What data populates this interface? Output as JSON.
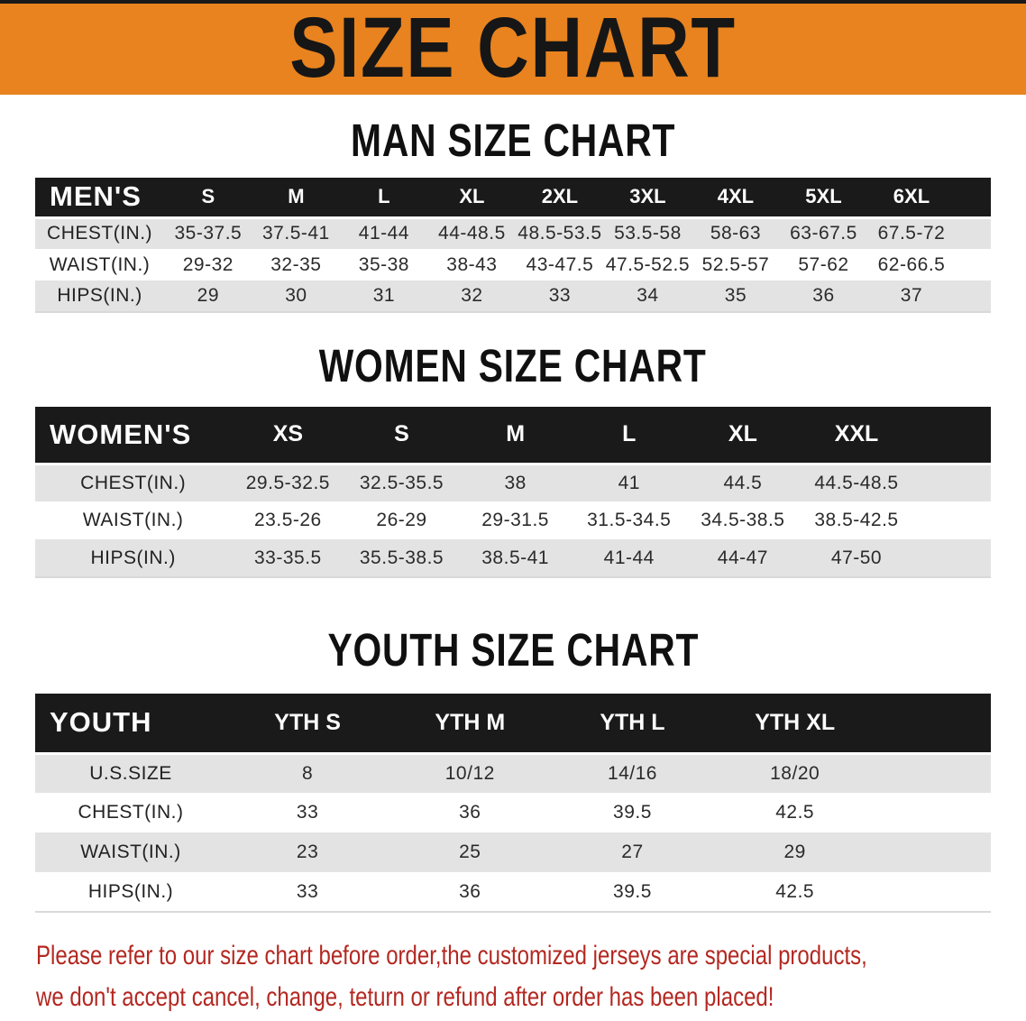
{
  "banner": {
    "title": "SIZE CHART"
  },
  "colors": {
    "banner_orange": "#E8831F",
    "header_black": "#1A1A1A",
    "row_gray": "#E3E3E4",
    "disclaimer_red": "#B32821"
  },
  "sections": [
    {
      "heading": "MAN SIZE CHART",
      "table": {
        "corner_label": "MEN'S",
        "columns": [
          "S",
          "M",
          "L",
          "XL",
          "2XL",
          "3XL",
          "4XL",
          "5XL",
          "6XL"
        ],
        "rows": [
          {
            "label": "CHEST(IN.)",
            "values": [
              "35-37.5",
              "37.5-41",
              "41-44",
              "44-48.5",
              "48.5-53.5",
              "53.5-58",
              "58-63",
              "63-67.5",
              "67.5-72"
            ]
          },
          {
            "label": "WAIST(IN.)",
            "values": [
              "29-32",
              "32-35",
              "35-38",
              "38-43",
              "43-47.5",
              "47.5-52.5",
              "52.5-57",
              "57-62",
              "62-66.5"
            ]
          },
          {
            "label": "HIPS(IN.)",
            "values": [
              "29",
              "30",
              "31",
              "32",
              "33",
              "34",
              "35",
              "36",
              "37"
            ]
          }
        ]
      }
    },
    {
      "heading": "WOMEN SIZE CHART",
      "table": {
        "corner_label": "WOMEN'S",
        "columns": [
          "XS",
          "S",
          "M",
          "L",
          "XL",
          "XXL"
        ],
        "rows": [
          {
            "label": "CHEST(IN.)",
            "values": [
              "29.5-32.5",
              "32.5-35.5",
              "38",
              "41",
              "44.5",
              "44.5-48.5"
            ]
          },
          {
            "label": "WAIST(IN.)",
            "values": [
              "23.5-26",
              "26-29",
              "29-31.5",
              "31.5-34.5",
              "34.5-38.5",
              "38.5-42.5"
            ]
          },
          {
            "label": "HIPS(IN.)",
            "values": [
              "33-35.5",
              "35.5-38.5",
              "38.5-41",
              "41-44",
              "44-47",
              "47-50"
            ]
          }
        ]
      }
    },
    {
      "heading": "YOUTH SIZE CHART",
      "table": {
        "corner_label": "YOUTH",
        "columns": [
          "YTH S",
          "YTH M",
          "YTH L",
          "YTH XL"
        ],
        "rows": [
          {
            "label": "U.S.SIZE",
            "values": [
              "8",
              "10/12",
              "14/16",
              "18/20"
            ]
          },
          {
            "label": "CHEST(IN.)",
            "values": [
              "33",
              "36",
              "39.5",
              "42.5"
            ]
          },
          {
            "label": "WAIST(IN.)",
            "values": [
              "23",
              "25",
              "27",
              "29"
            ]
          },
          {
            "label": "HIPS(IN.)",
            "values": [
              "33",
              "36",
              "39.5",
              "42.5"
            ]
          }
        ]
      }
    }
  ],
  "disclaimer": {
    "line1": "Please refer to our size chart before order,the customized jerseys are special products,",
    "line2": "we don't accept cancel, change, teturn or refund after order has been placed!"
  }
}
